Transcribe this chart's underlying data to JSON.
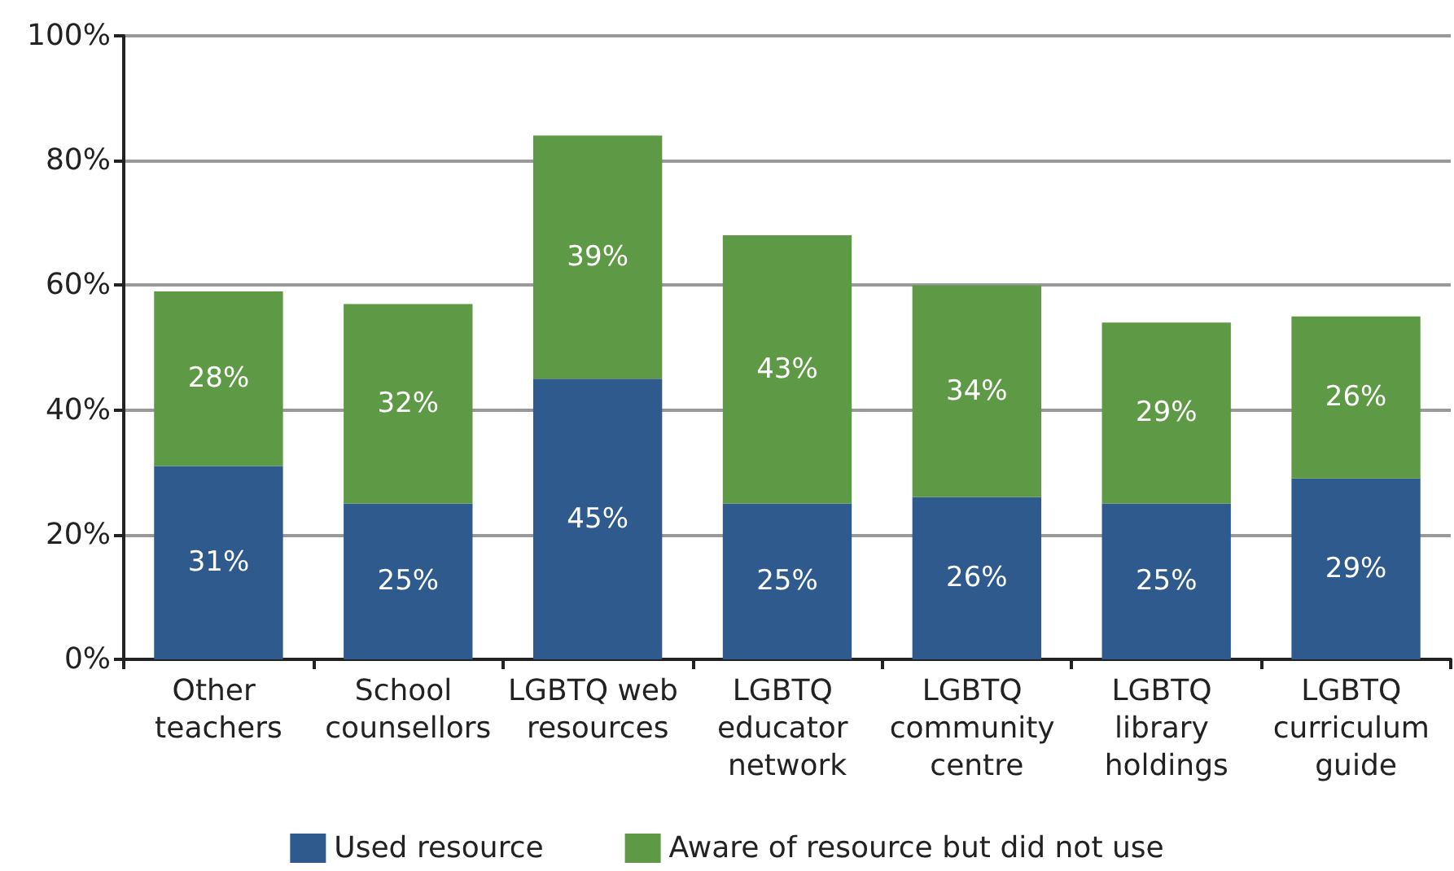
{
  "chart_data": {
    "type": "bar",
    "stacked": true,
    "categories": [
      "Other teachers",
      "School counsellors",
      "LGBTQ web resources",
      "LGBTQ educator network",
      "LGBTQ community centre",
      "LGBTQ library holdings",
      "LGBTQ curriculum guide"
    ],
    "series": [
      {
        "name": "Used resource",
        "color": "#2e5a8e",
        "values": [
          31,
          25,
          45,
          25,
          26,
          25,
          29
        ],
        "value_labels": [
          "31%",
          "25%",
          "45%",
          "25%",
          "26%",
          "25%",
          "29%"
        ]
      },
      {
        "name": "Aware of resource but did not use",
        "color": "#5e9a45",
        "values": [
          28,
          32,
          39,
          43,
          34,
          29,
          26
        ],
        "value_labels": [
          "28%",
          "32%",
          "39%",
          "43%",
          "34%",
          "29%",
          "26%"
        ]
      }
    ],
    "ylim": [
      0,
      100
    ],
    "yticks": [
      {
        "value": 0,
        "label": "0%"
      },
      {
        "value": 20,
        "label": "20%"
      },
      {
        "value": 40,
        "label": "40%"
      },
      {
        "value": 60,
        "label": "60%"
      },
      {
        "value": 80,
        "label": "80%"
      },
      {
        "value": 100,
        "label": "100%"
      }
    ],
    "grid": "y",
    "legend": "bottom"
  }
}
